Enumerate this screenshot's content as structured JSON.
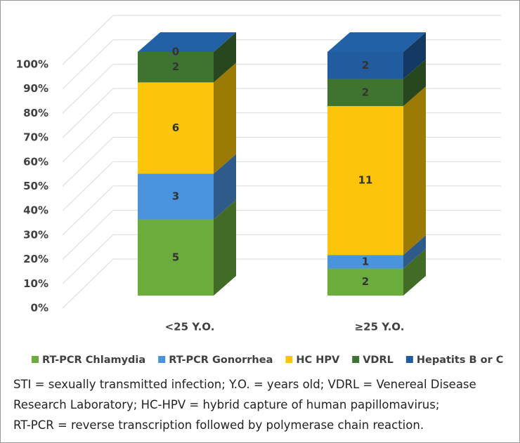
{
  "chart_data": {
    "type": "stacked_bar_3d",
    "stacking": "percent",
    "categories": [
      "<25 Y.O.",
      "≥25 Y.O."
    ],
    "series": [
      {
        "name": "RT-PCR Chlamydia",
        "color": "#6aad3d",
        "values": [
          5,
          2
        ]
      },
      {
        "name": "RT-PCR Gonorrhea",
        "color": "#4a93dd",
        "values": [
          3,
          1
        ]
      },
      {
        "name": "HC HPV",
        "color": "#fcc40a",
        "values": [
          6,
          11
        ]
      },
      {
        "name": "VDRL",
        "color": "#3f7430",
        "values": [
          2,
          2
        ]
      },
      {
        "name": "Hepatits B or C",
        "color": "#215c9f",
        "values": [
          0,
          2
        ]
      }
    ],
    "ylim": [
      0,
      100
    ],
    "yticks": [
      {
        "value": 0,
        "label": "0%"
      },
      {
        "value": 10,
        "label": "10%"
      },
      {
        "value": 20,
        "label": "20%"
      },
      {
        "value": 30,
        "label": "30%"
      },
      {
        "value": 40,
        "label": "40%"
      },
      {
        "value": 50,
        "label": "50%"
      },
      {
        "value": 60,
        "label": "60%"
      },
      {
        "value": 70,
        "label": "70%"
      },
      {
        "value": 80,
        "label": "80%"
      },
      {
        "value": 90,
        "label": "90%"
      },
      {
        "value": 100,
        "label": "100%"
      }
    ],
    "grid": true,
    "legend": "bottom"
  },
  "caption": [
    "STI = sexually transmitted infection; Y.O. = years old; VDRL = Venereal Disease",
    "Research Laboratory; HC-HPV = hybrid capture of human papillomavirus;",
    "RT-PCR = reverse transcription followed by polymerase chain reaction."
  ]
}
